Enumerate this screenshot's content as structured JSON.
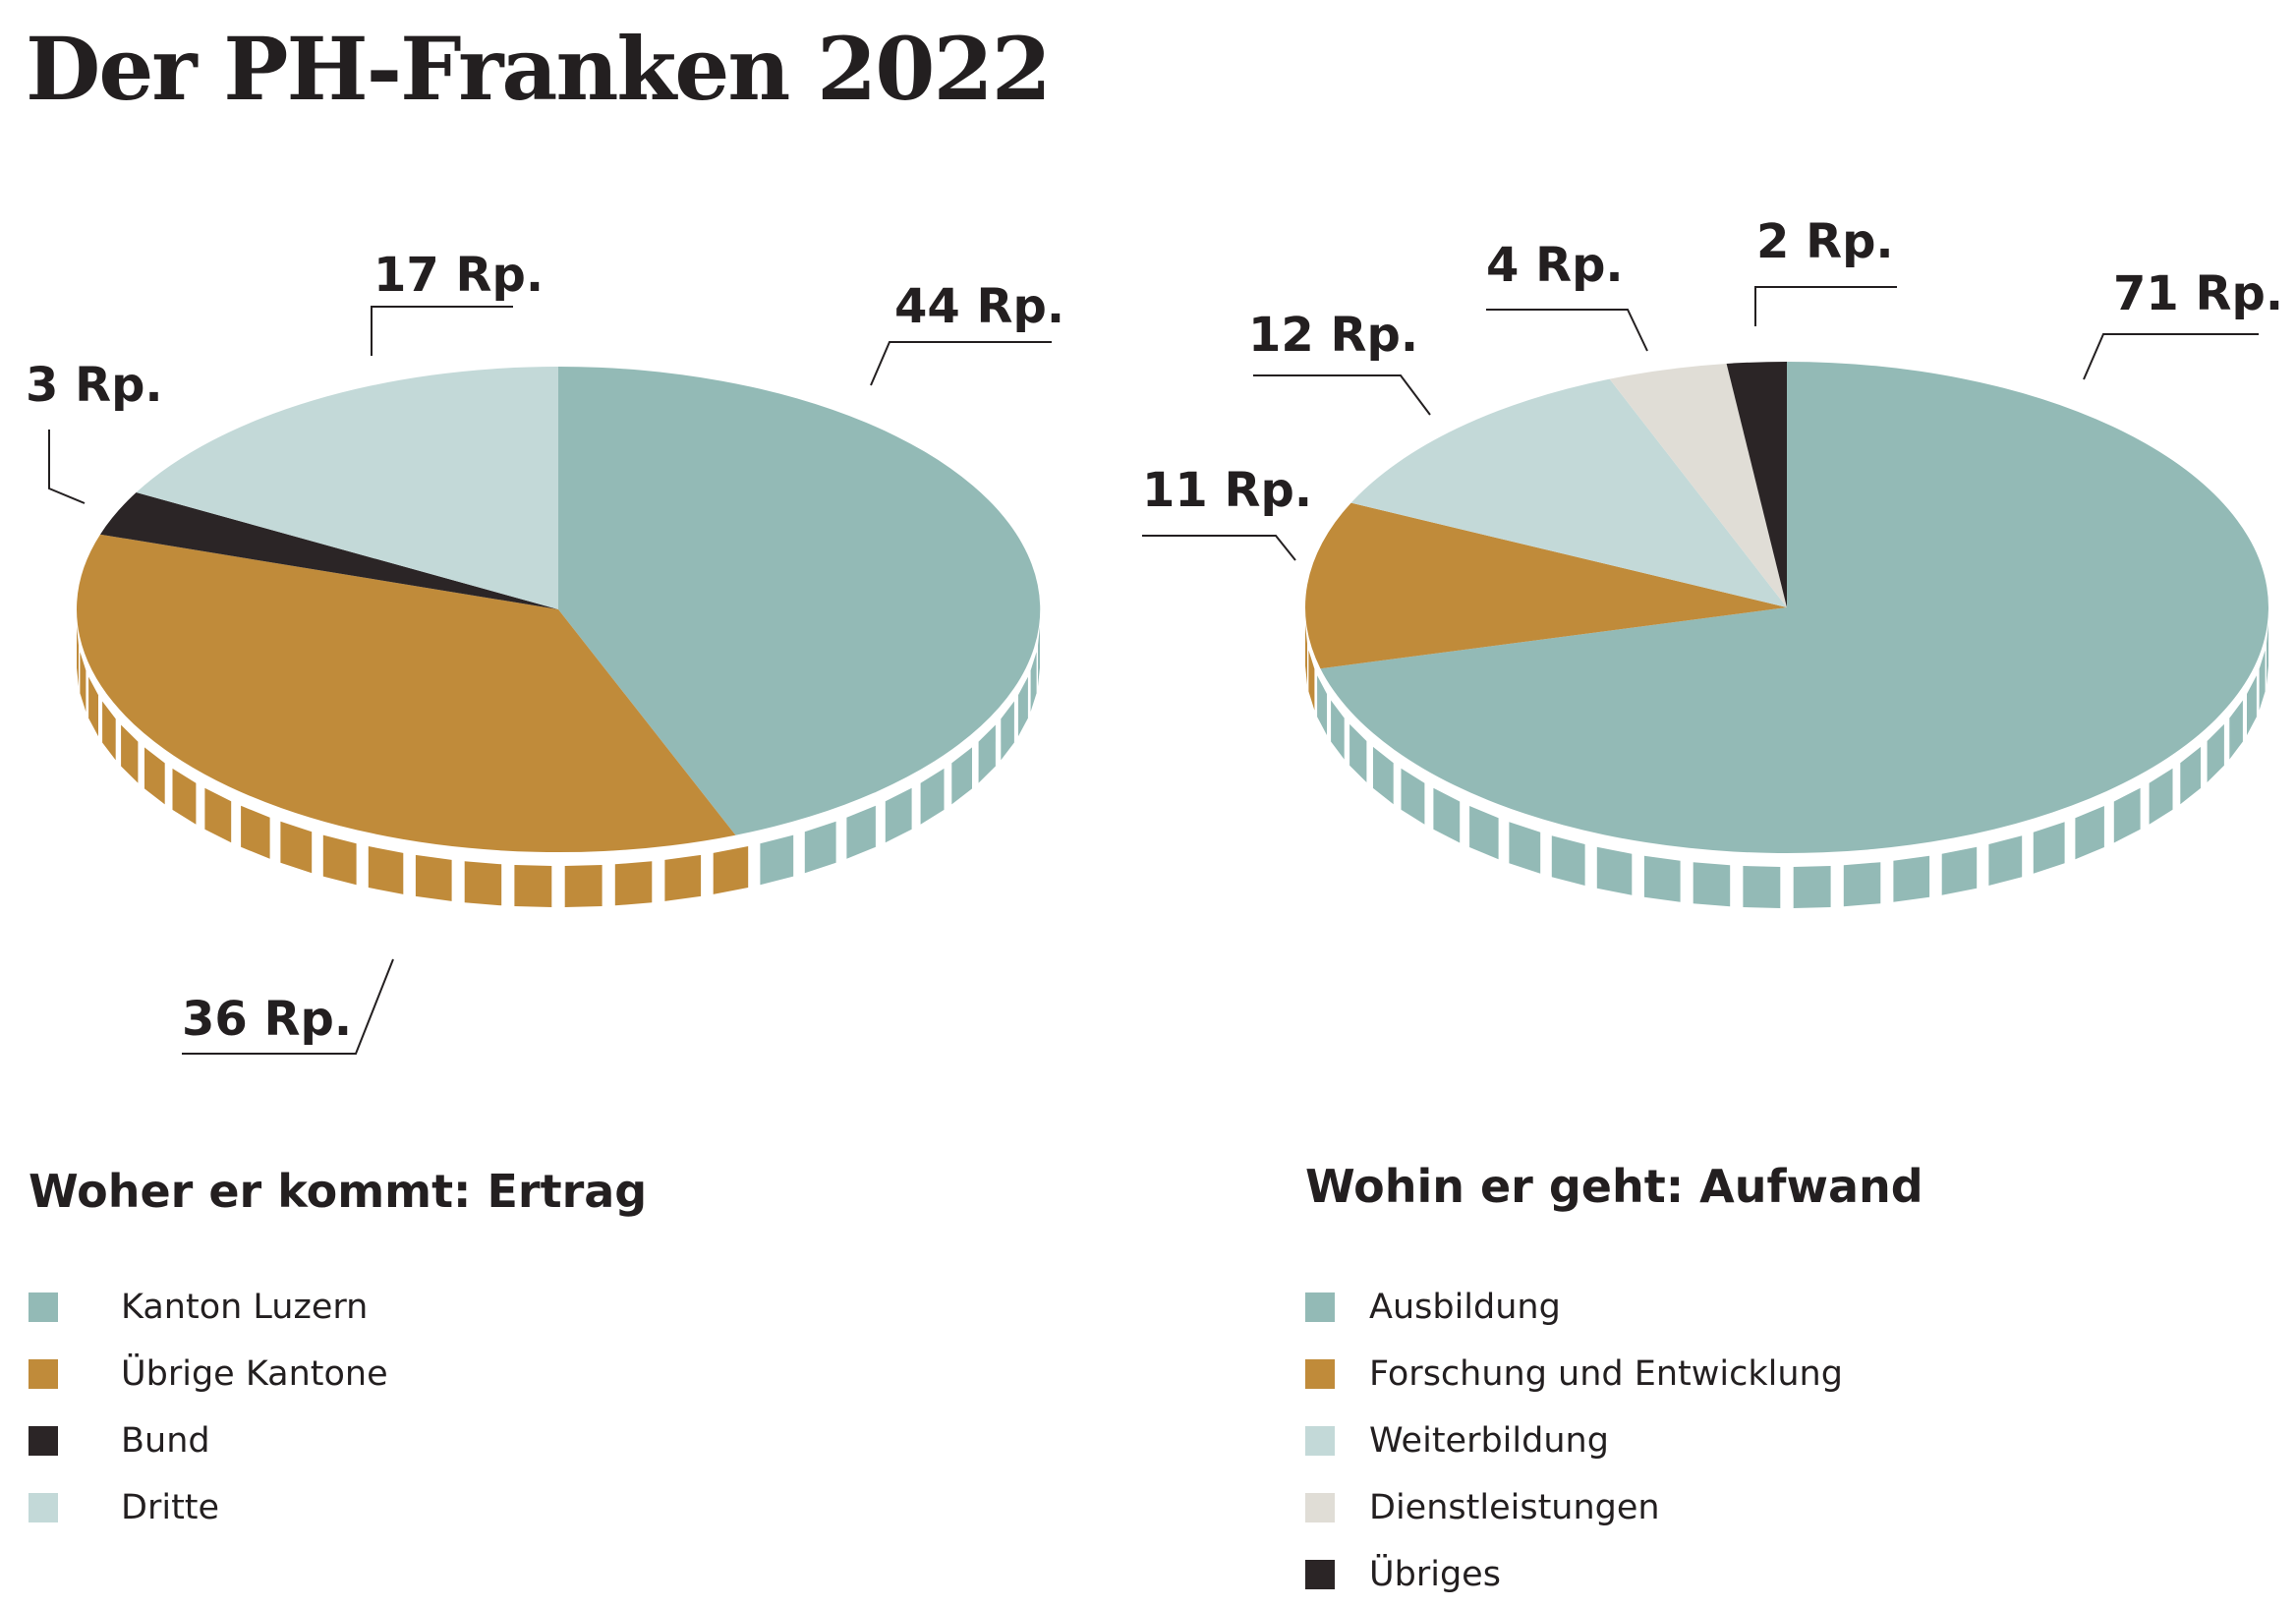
{
  "title": "Der PH-Franken 2022",
  "colors": {
    "teal": "#93bab6",
    "ochre": "#c08b3a",
    "dark": "#2b2526",
    "light_teal": "#c3d9d8",
    "beige": "#e0ddd6"
  },
  "chart_data": [
    {
      "type": "pie",
      "title": "Woher er kommt: Ertrag",
      "unit": "Rp.",
      "slices": [
        {
          "label": "Kanton Luzern",
          "value": 44,
          "value_label": "44 Rp.",
          "color": "#93bab6"
        },
        {
          "label": "Übrige Kantone",
          "value": 36,
          "value_label": "36 Rp.",
          "color": "#c08b3a"
        },
        {
          "label": "Bund",
          "value": 3,
          "value_label": "3 Rp.",
          "color": "#2b2526"
        },
        {
          "label": "Dritte",
          "value": 17,
          "value_label": "17 Rp.",
          "color": "#c3d9d8"
        }
      ]
    },
    {
      "type": "pie",
      "title": "Wohin er geht: Aufwand",
      "unit": "Rp.",
      "slices": [
        {
          "label": "Ausbildung",
          "value": 71,
          "value_label": "71 Rp.",
          "color": "#93bab6"
        },
        {
          "label": "Forschung und Entwicklung",
          "value": 11,
          "value_label": "11 Rp.",
          "color": "#c08b3a"
        },
        {
          "label": "Weiterbildung",
          "value": 12,
          "value_label": "12 Rp.",
          "color": "#c3d9d8"
        },
        {
          "label": "Dienstleistungen",
          "value": 4,
          "value_label": "4 Rp.",
          "color": "#e0ddd6"
        },
        {
          "label": "Übriges",
          "value": 2,
          "value_label": "2 Rp.",
          "color": "#2b2526"
        }
      ]
    }
  ]
}
